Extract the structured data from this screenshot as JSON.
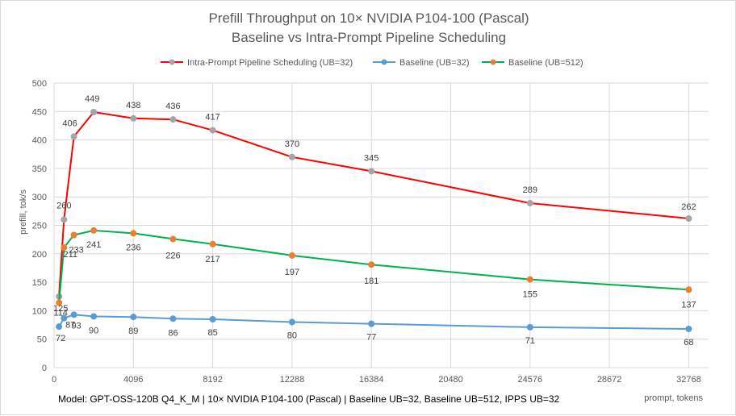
{
  "chart_data": {
    "type": "line",
    "title": "Prefill Throughput on 10× NVIDIA P104-100 (Pascal)",
    "subtitle": "Baseline vs Intra-Prompt Pipeline Scheduling",
    "xlabel": "prompt, tokens",
    "ylabel": "prefill, tok/s",
    "footnote": "Model: GPT-OSS-120B Q4_K_M  | 10× NVIDIA P104-100 (Pascal) | Baseline UB=32, Baseline UB=512, IPPS UB=32",
    "xlim": [
      0,
      33792
    ],
    "ylim": [
      0,
      500
    ],
    "xticks": [
      0,
      4096,
      8192,
      12288,
      16384,
      20480,
      24576,
      28672,
      32768
    ],
    "yticks": [
      0,
      50,
      100,
      150,
      200,
      250,
      300,
      350,
      400,
      450,
      500
    ],
    "grid": true,
    "legend_position": "top",
    "series": [
      {
        "name": "Intra-Prompt Pipeline Scheduling (UB=32)",
        "color": "#ff0000",
        "marker_color": "#a5a5a5",
        "x": [
          256,
          512,
          1024,
          2048,
          4096,
          6144,
          8192,
          12288,
          16384,
          24576,
          32768
        ],
        "values": [
          125,
          260,
          406,
          449,
          438,
          436,
          417,
          370,
          345,
          289,
          262
        ],
        "labels": [
          "125",
          "260",
          "406",
          "449",
          "438",
          "436",
          "417",
          "370",
          "345",
          "289",
          "262"
        ]
      },
      {
        "name": "Baseline (UB=32)",
        "color": "#5b9bd5",
        "marker_color": "#5b9bd5",
        "x": [
          256,
          512,
          1024,
          2048,
          4096,
          6144,
          8192,
          12288,
          16384,
          24576,
          32768
        ],
        "values": [
          72,
          87,
          93,
          90,
          89,
          86,
          85,
          80,
          77,
          71,
          68
        ],
        "labels": [
          "72",
          "87",
          "93",
          "90",
          "89",
          "86",
          "85",
          "80",
          "77",
          "71",
          "68"
        ]
      },
      {
        "name": "Baseline (UB=512)",
        "color": "#00b050",
        "marker_color": "#ed7d31",
        "x": [
          256,
          512,
          1024,
          2048,
          4096,
          6144,
          8192,
          12288,
          16384,
          24576,
          32768
        ],
        "values": [
          114,
          211,
          233,
          241,
          236,
          226,
          217,
          197,
          181,
          155,
          137
        ],
        "labels": [
          "114",
          "211",
          "233",
          "241",
          "236",
          "226",
          "217",
          "197",
          "181",
          "155",
          "137"
        ]
      }
    ]
  }
}
